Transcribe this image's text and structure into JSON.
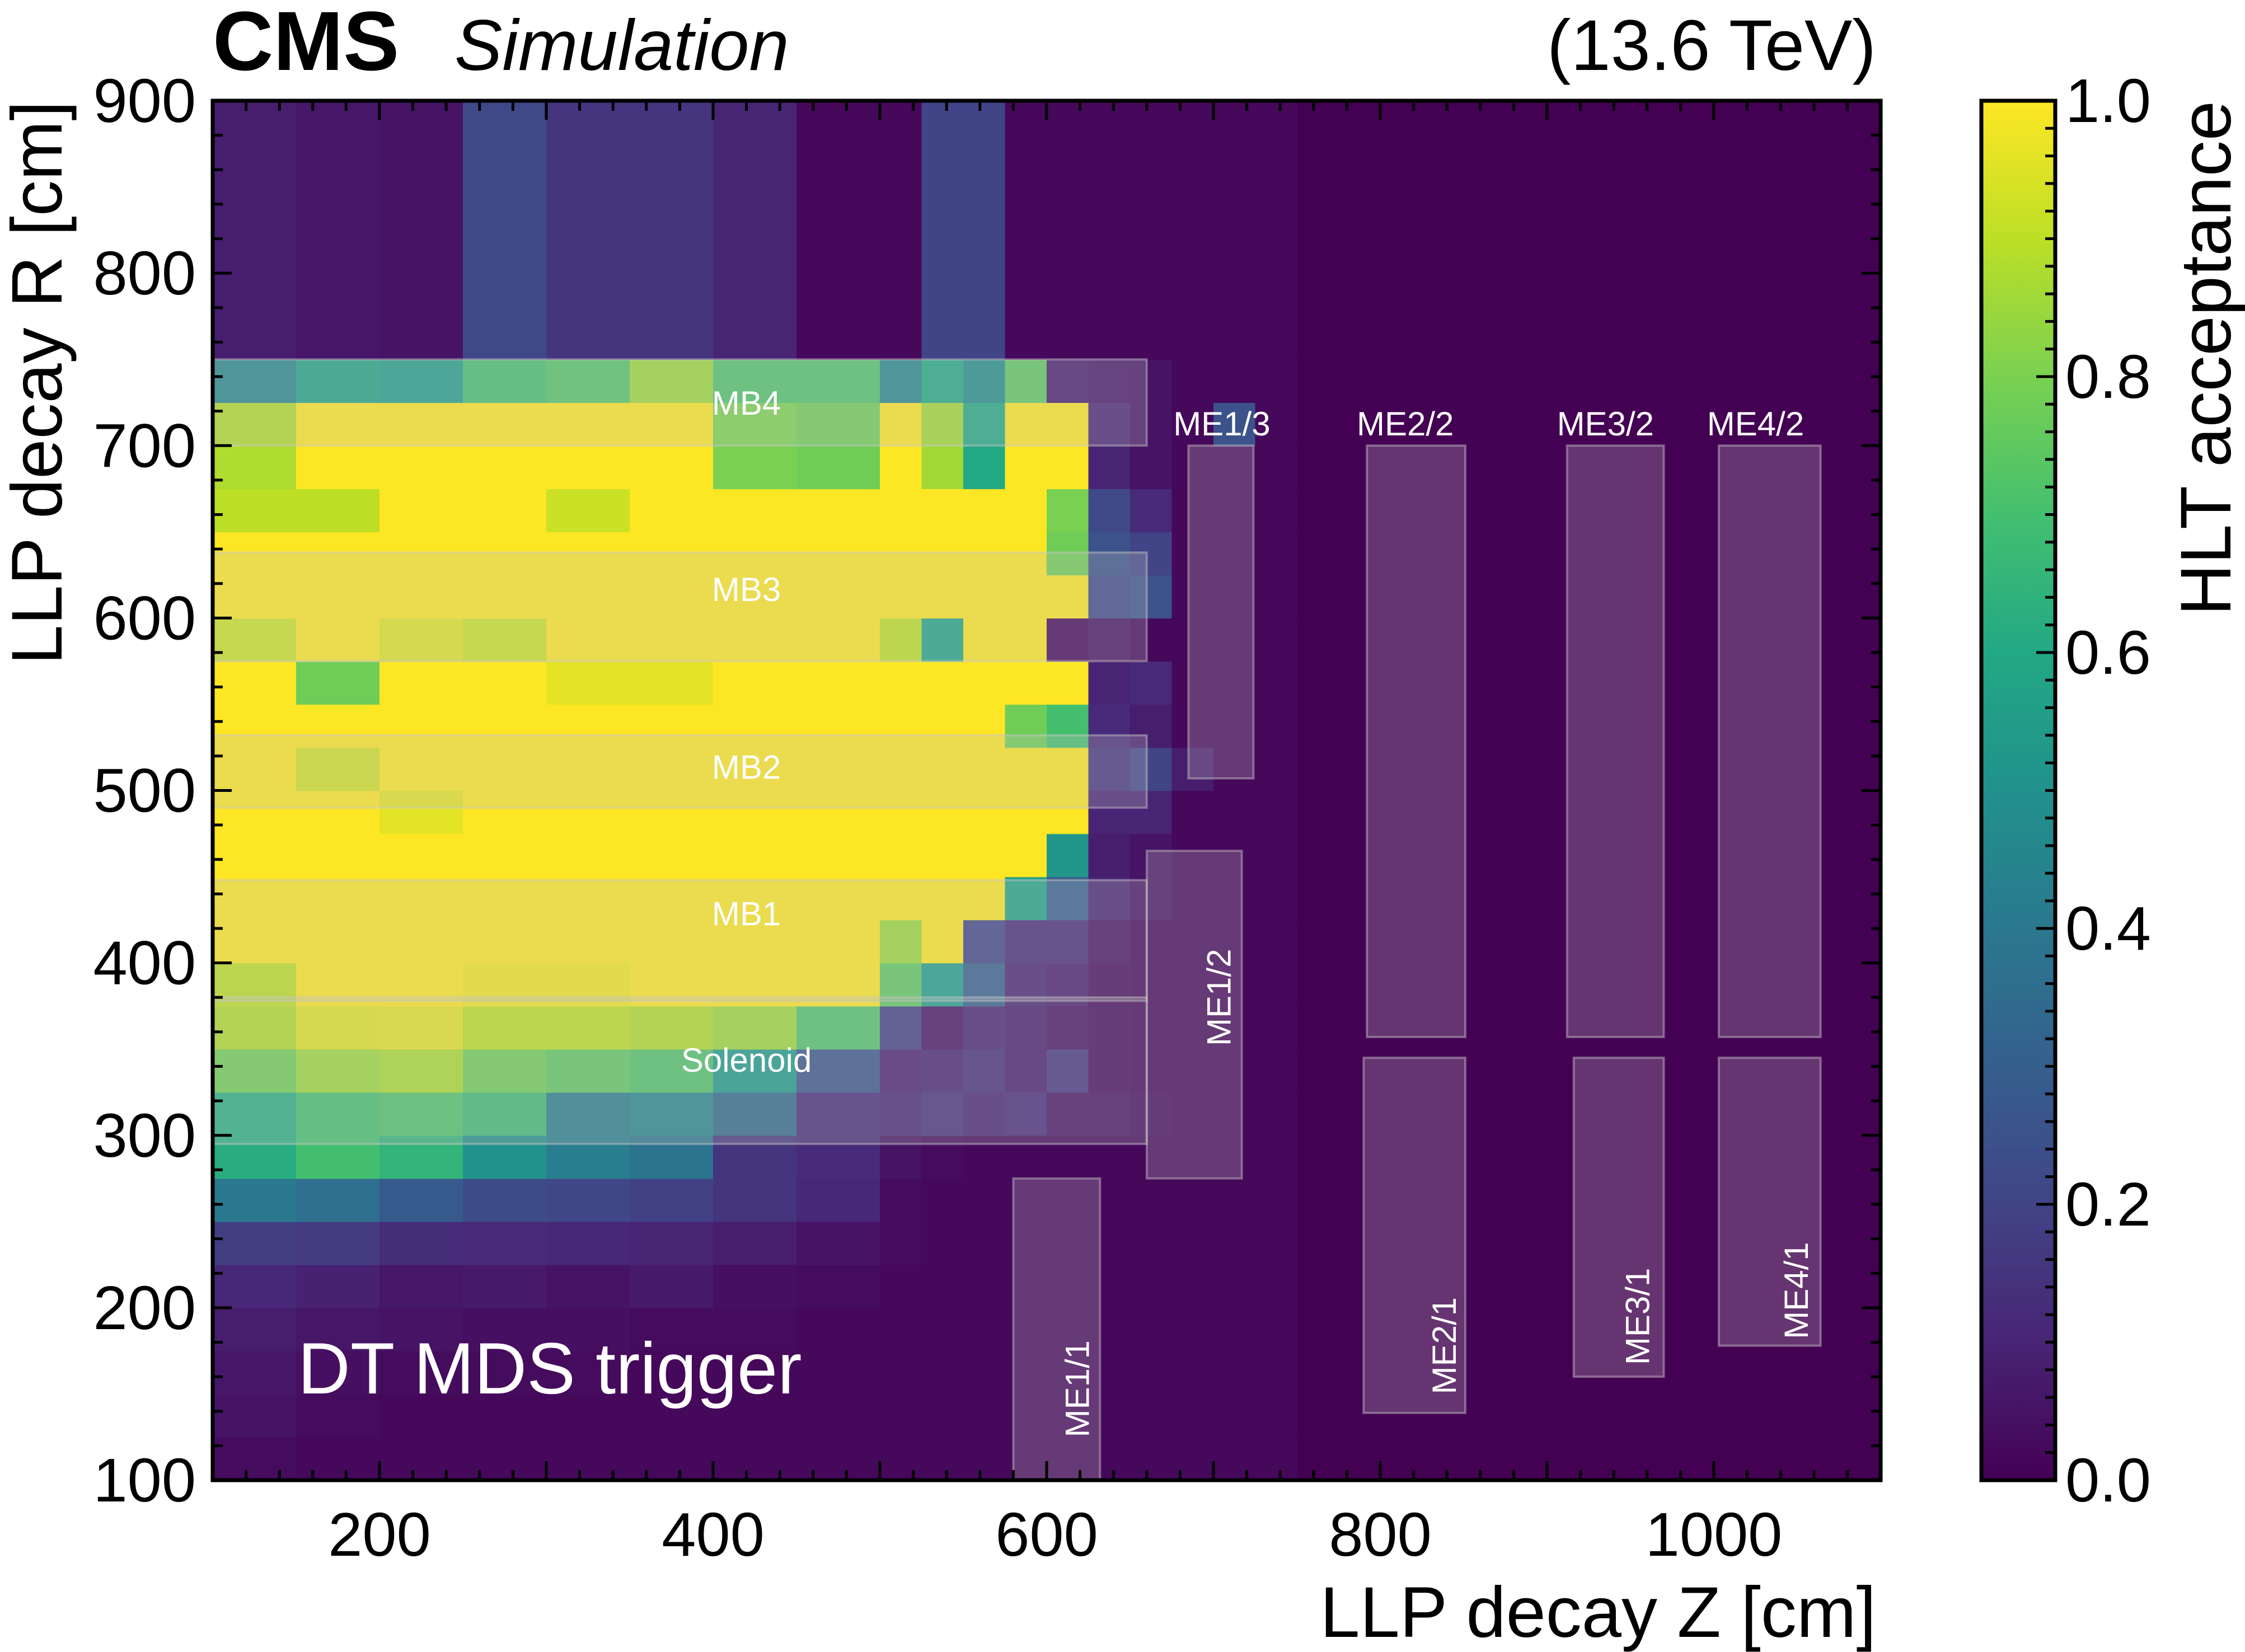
{
  "header": {
    "experiment": "CMS",
    "label": "Simulation",
    "energy": "(13.6 TeV)"
  },
  "chart_data": {
    "type": "heatmap",
    "title": "",
    "xlabel": "LLP decay Z [cm]",
    "ylabel": "LLP decay R [cm]",
    "xlim": [
      100,
      1100
    ],
    "ylim": [
      100,
      900
    ],
    "x_ticks": [
      200,
      400,
      600,
      800,
      1000
    ],
    "y_ticks": [
      100,
      200,
      300,
      400,
      500,
      600,
      700,
      800,
      900
    ],
    "colorbar": {
      "label": "HLT acceptance",
      "range": [
        0.0,
        1.0
      ],
      "ticks": [
        0.0,
        0.2,
        0.4,
        0.6,
        0.8,
        1.0
      ],
      "tick_labels": [
        "0.0",
        "0.2",
        "0.4",
        "0.6",
        "0.8",
        "1.0"
      ],
      "colormap": "viridis"
    },
    "annotation": "DT MDS trigger",
    "x_bin_edges": [
      100,
      150,
      200,
      250,
      300,
      350,
      400,
      450,
      500,
      525,
      550,
      575,
      600,
      625,
      650,
      675,
      700,
      725,
      750
    ],
    "x_bins_beyond_750": 0.0,
    "y_bin_edges": [
      100,
      125,
      150,
      175,
      200,
      225,
      250,
      275,
      300,
      325,
      350,
      375,
      400,
      425,
      450,
      475,
      500,
      525,
      550,
      575,
      600,
      625,
      650,
      675,
      700,
      725,
      750,
      900
    ],
    "values": [
      [
        0.03,
        0.02,
        0.02,
        0.02,
        0.02,
        0.02,
        0.02,
        0.02,
        0.02,
        0.02,
        0.02,
        0.02,
        0.02,
        0.02,
        0.02,
        0.02,
        0.02,
        0.02
      ],
      [
        0.05,
        0.03,
        0.02,
        0.02,
        0.02,
        0.02,
        0.02,
        0.02,
        0.02,
        0.02,
        0.02,
        0.02,
        0.02,
        0.02,
        0.02,
        0.02,
        0.02,
        0.02
      ],
      [
        0.06,
        0.04,
        0.03,
        0.03,
        0.03,
        0.02,
        0.02,
        0.02,
        0.02,
        0.02,
        0.02,
        0.02,
        0.02,
        0.02,
        0.02,
        0.02,
        0.02,
        0.02
      ],
      [
        0.08,
        0.06,
        0.05,
        0.04,
        0.04,
        0.03,
        0.03,
        0.02,
        0.02,
        0.02,
        0.02,
        0.02,
        0.02,
        0.02,
        0.02,
        0.02,
        0.02,
        0.02
      ],
      [
        0.11,
        0.09,
        0.06,
        0.07,
        0.05,
        0.07,
        0.04,
        0.03,
        0.02,
        0.02,
        0.02,
        0.02,
        0.02,
        0.02,
        0.02,
        0.02,
        0.02,
        0.02
      ],
      [
        0.18,
        0.17,
        0.13,
        0.12,
        0.11,
        0.1,
        0.08,
        0.05,
        0.03,
        0.02,
        0.02,
        0.02,
        0.02,
        0.02,
        0.02,
        0.02,
        0.02,
        0.02
      ],
      [
        0.4,
        0.36,
        0.28,
        0.23,
        0.21,
        0.19,
        0.15,
        0.11,
        0.03,
        0.02,
        0.02,
        0.02,
        0.02,
        0.02,
        0.02,
        0.02,
        0.02,
        0.02
      ],
      [
        0.62,
        0.7,
        0.65,
        0.5,
        0.42,
        0.38,
        0.15,
        0.12,
        0.05,
        0.03,
        0.02,
        0.02,
        0.02,
        0.02,
        0.02,
        0.02,
        0.02,
        0.02
      ],
      [
        0.62,
        0.7,
        0.72,
        0.68,
        0.42,
        0.45,
        0.34,
        0.12,
        0.11,
        0.14,
        0.1,
        0.12,
        0.05,
        0.05,
        0.03,
        0.02,
        0.02,
        0.02
      ],
      [
        0.78,
        0.85,
        0.87,
        0.78,
        0.75,
        0.72,
        0.54,
        0.26,
        0.09,
        0.1,
        0.13,
        0.08,
        0.16,
        0.03,
        0.02,
        0.02,
        0.02,
        0.02
      ],
      [
        0.88,
        0.95,
        0.96,
        0.9,
        0.9,
        0.88,
        0.85,
        0.72,
        0.18,
        0.05,
        0.1,
        0.08,
        0.05,
        0.03,
        0.02,
        0.02,
        0.02,
        0.02
      ],
      [
        0.9,
        1.0,
        1.0,
        0.98,
        0.98,
        1.0,
        1.0,
        1.0,
        0.75,
        0.55,
        0.3,
        0.1,
        0.08,
        0.03,
        0.02,
        0.02,
        0.02,
        0.02
      ],
      [
        1.0,
        1.0,
        1.0,
        1.0,
        1.0,
        1.0,
        1.0,
        1.0,
        0.85,
        1.0,
        0.2,
        0.12,
        0.12,
        0.05,
        0.02,
        0.02,
        0.02,
        0.02
      ],
      [
        1.0,
        1.0,
        1.0,
        1.0,
        1.0,
        1.0,
        1.0,
        1.0,
        1.0,
        1.0,
        1.0,
        0.58,
        0.3,
        0.1,
        0.05,
        0.02,
        0.02,
        0.02
      ],
      [
        1.0,
        1.0,
        1.0,
        1.0,
        1.0,
        1.0,
        1.0,
        1.0,
        1.0,
        1.0,
        1.0,
        1.0,
        0.52,
        0.08,
        0.05,
        0.02,
        0.02,
        0.02
      ],
      [
        1.0,
        1.0,
        0.96,
        1.0,
        1.0,
        1.0,
        1.0,
        1.0,
        1.0,
        1.0,
        1.0,
        1.0,
        1.0,
        0.1,
        0.1,
        0.02,
        0.02,
        0.02
      ],
      [
        1.0,
        0.93,
        1.0,
        1.0,
        1.0,
        1.0,
        1.0,
        1.0,
        1.0,
        1.0,
        1.0,
        1.0,
        1.0,
        0.15,
        0.2,
        0.08,
        0.02,
        0.02
      ],
      [
        1.0,
        1.0,
        1.0,
        1.0,
        1.0,
        1.0,
        1.0,
        1.0,
        1.0,
        1.0,
        1.0,
        0.78,
        0.7,
        0.12,
        0.08,
        0.02,
        0.02,
        0.02
      ],
      [
        1.0,
        0.78,
        1.0,
        1.0,
        0.96,
        0.96,
        1.0,
        1.0,
        1.0,
        1.0,
        1.0,
        1.0,
        1.0,
        0.1,
        0.12,
        0.02,
        0.02,
        0.02
      ],
      [
        0.92,
        1.0,
        0.95,
        0.92,
        1.0,
        1.0,
        1.0,
        1.0,
        0.9,
        0.58,
        1.0,
        1.0,
        0.02,
        0.05,
        0.02,
        0.02,
        0.02,
        0.02
      ],
      [
        1.0,
        1.0,
        1.0,
        1.0,
        1.0,
        1.0,
        1.0,
        1.0,
        1.0,
        1.0,
        1.0,
        1.0,
        1.0,
        0.22,
        0.25,
        0.02,
        0.02,
        0.02
      ],
      [
        1.0,
        1.0,
        1.0,
        1.0,
        1.0,
        1.0,
        1.0,
        1.0,
        1.0,
        1.0,
        1.0,
        1.0,
        0.78,
        0.25,
        0.2,
        0.02,
        0.02,
        0.02
      ],
      [
        0.9,
        0.9,
        1.0,
        1.0,
        0.92,
        1.0,
        1.0,
        1.0,
        1.0,
        1.0,
        1.0,
        1.0,
        0.8,
        0.22,
        0.12,
        0.02,
        0.02,
        0.02
      ],
      [
        0.88,
        1.0,
        1.0,
        1.0,
        1.0,
        1.0,
        0.8,
        0.78,
        1.0,
        0.86,
        0.6,
        1.0,
        1.0,
        0.1,
        0.05,
        0.02,
        0.02,
        0.02
      ],
      [
        0.88,
        1.0,
        1.0,
        1.0,
        1.0,
        1.0,
        0.8,
        0.78,
        1.0,
        0.86,
        0.6,
        1.0,
        1.0,
        0.1,
        0.05,
        0.02,
        0.25,
        0.02
      ],
      [
        0.45,
        0.58,
        0.55,
        0.7,
        0.73,
        0.85,
        0.72,
        0.72,
        0.45,
        0.6,
        0.48,
        0.75,
        0.08,
        0.06,
        0.05,
        0.02,
        0.02,
        0.02
      ],
      [
        0.08,
        0.06,
        0.05,
        0.22,
        0.15,
        0.15,
        0.1,
        0.02,
        0.02,
        0.2,
        0.2,
        0.02,
        0.02,
        0.02,
        0.02,
        0.02,
        0.02,
        0.02
      ]
    ],
    "detector_regions": [
      {
        "name": "MB4",
        "label": "MB4",
        "z": [
          100,
          660
        ],
        "r": [
          700,
          750
        ],
        "label_z": 420,
        "label_r": 723
      },
      {
        "name": "MB3",
        "label": "MB3",
        "z": [
          100,
          660
        ],
        "r": [
          575,
          638
        ],
        "label_z": 420,
        "label_r": 615
      },
      {
        "name": "MB2",
        "label": "MB2",
        "z": [
          100,
          660
        ],
        "r": [
          490,
          532
        ],
        "label_z": 420,
        "label_r": 512
      },
      {
        "name": "MB1",
        "label": "MB1",
        "z": [
          100,
          660
        ],
        "r": [
          378,
          448
        ],
        "label_z": 420,
        "label_r": 427
      },
      {
        "name": "Solenoid",
        "label": "Solenoid",
        "z": [
          100,
          660
        ],
        "r": [
          295,
          380
        ],
        "label_z": 420,
        "label_r": 342
      },
      {
        "name": "ME1/1",
        "label": "ME1/1",
        "z": [
          580,
          632
        ],
        "r": [
          100,
          275
        ],
        "label_z": 620,
        "label_r": 153,
        "vertical": true
      },
      {
        "name": "ME1/2",
        "label": "ME1/2",
        "z": [
          660,
          717
        ],
        "r": [
          275,
          465
        ],
        "label_z": 705,
        "label_r": 380,
        "vertical": true
      },
      {
        "name": "ME1/3",
        "label": "ME1/3",
        "z": [
          685,
          724
        ],
        "r": [
          507,
          700
        ],
        "label_z": 705,
        "label_r": 711
      },
      {
        "name": "ME2/1",
        "label": "ME2/1",
        "z": [
          790,
          851
        ],
        "r": [
          139,
          345
        ],
        "label_z": 840,
        "label_r": 178,
        "vertical": true
      },
      {
        "name": "ME2/2",
        "label": "ME2/2",
        "z": [
          792,
          851
        ],
        "r": [
          357,
          700
        ],
        "label_z": 815,
        "label_r": 711
      },
      {
        "name": "ME3/1",
        "label": "ME3/1",
        "z": [
          916,
          970
        ],
        "r": [
          160,
          345
        ],
        "label_z": 956,
        "label_r": 195,
        "vertical": true
      },
      {
        "name": "ME3/2",
        "label": "ME3/2",
        "z": [
          912,
          970
        ],
        "r": [
          357,
          700
        ],
        "label_z": 935,
        "label_r": 711
      },
      {
        "name": "ME4/1",
        "label": "ME4/1",
        "z": [
          1003,
          1064
        ],
        "r": [
          178,
          345
        ],
        "label_z": 1051,
        "label_r": 210,
        "vertical": true
      },
      {
        "name": "ME4/2",
        "label": "ME4/2",
        "z": [
          1003,
          1064
        ],
        "r": [
          357,
          700
        ],
        "label_z": 1025,
        "label_r": 711
      }
    ]
  }
}
